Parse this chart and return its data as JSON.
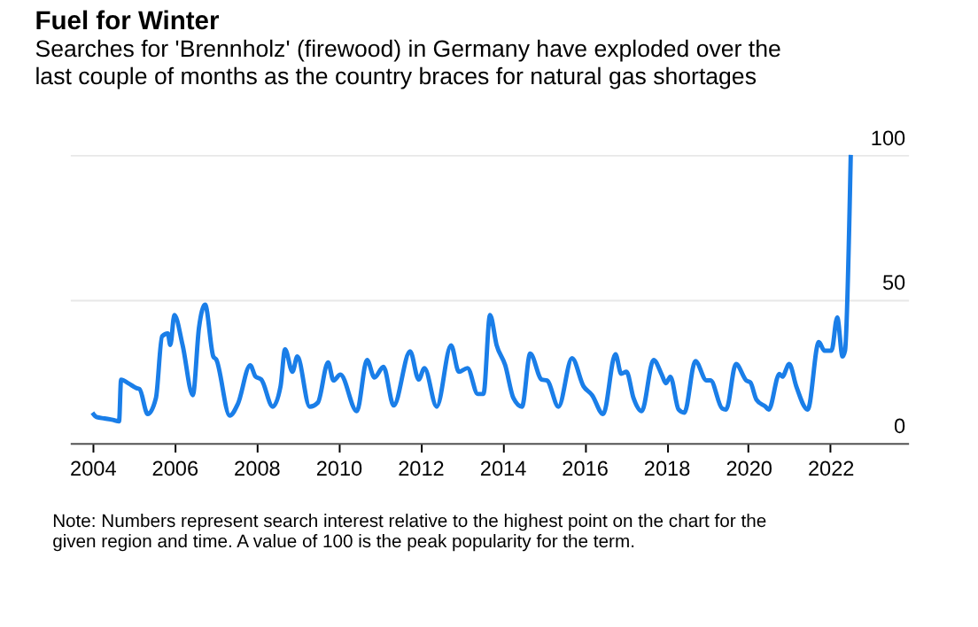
{
  "chart_data": {
    "type": "line",
    "title": "Fuel for Winter",
    "subtitle": "Searches for 'Brennholz' (firewood) in Germany have exploded over the last couple of months as the country braces for natural gas shortages",
    "annotations": [
      "Note: Numbers represent search interest relative to the highest point on the chart for the given region and time. A value of 100 is the peak popularity for the term."
    ],
    "series": [
      {
        "color": "#1a7ee8",
        "x": [
          2004.0,
          2004.1,
          2004.3,
          2004.5,
          2004.65,
          2004.7,
          2004.88,
          2005.08,
          2005.15,
          2005.35,
          2005.55,
          2005.7,
          2005.84,
          2005.9,
          2006.0,
          2006.2,
          2006.45,
          2006.6,
          2006.75,
          2006.95,
          2007.02,
          2007.35,
          2007.55,
          2007.85,
          2007.98,
          2008.12,
          2008.4,
          2008.59,
          2008.7,
          2008.88,
          2009.0,
          2009.3,
          2009.5,
          2009.75,
          2009.88,
          2010.05,
          2010.45,
          2010.7,
          2010.88,
          2011.1,
          2011.35,
          2011.75,
          2011.96,
          2012.1,
          2012.4,
          2012.75,
          2012.94,
          2013.15,
          2013.4,
          2013.54,
          2013.7,
          2013.86,
          2014.07,
          2014.27,
          2014.48,
          2014.68,
          2014.96,
          2015.09,
          2015.37,
          2015.7,
          2015.98,
          2016.19,
          2016.46,
          2016.76,
          2016.9,
          2017.03,
          2017.2,
          2017.4,
          2017.69,
          2017.89,
          2017.99,
          2018.1,
          2018.3,
          2018.44,
          2018.71,
          2018.98,
          2019.08,
          2019.36,
          2019.46,
          2019.7,
          2019.95,
          2020.05,
          2020.2,
          2020.42,
          2020.5,
          2020.76,
          2020.83,
          2021.0,
          2021.17,
          2021.45,
          2021.72,
          2021.86,
          2022.03,
          2022.17,
          2022.3,
          2022.36,
          2022.5
        ],
        "values": [
          10.5,
          9,
          8.5,
          8,
          7.5,
          22,
          20.7,
          19,
          18.7,
          10,
          15.6,
          37,
          38,
          34,
          44.4,
          34,
          16.6,
          40,
          48,
          30,
          29,
          9.5,
          13.6,
          27,
          23,
          22,
          12.6,
          19.7,
          32.5,
          24.7,
          30,
          12.6,
          14,
          28,
          21.7,
          23.7,
          11,
          28.8,
          22.7,
          26.4,
          13,
          31.8,
          22,
          26,
          12.6,
          33.9,
          24.7,
          26,
          17,
          17,
          44.4,
          34,
          27,
          15.6,
          12.6,
          31,
          22,
          21.7,
          12.6,
          29.4,
          19.7,
          16.6,
          10,
          30.8,
          24,
          24.7,
          15.6,
          11,
          28.8,
          23.7,
          20.7,
          23,
          11.6,
          10.5,
          28.4,
          21.7,
          21.7,
          12,
          11.6,
          27.4,
          21.7,
          21,
          15,
          12.6,
          11.6,
          24,
          23,
          27.4,
          19.7,
          11.6,
          35,
          32,
          32,
          43.6,
          30,
          32,
          100
        ]
      }
    ],
    "xlim": [
      2003.45,
      2023.9
    ],
    "xticks": [
      2004,
      2006,
      2008,
      2010,
      2012,
      2014,
      2016,
      2018,
      2020,
      2022
    ],
    "ylim": [
      0,
      100
    ],
    "yticks": [
      0,
      50,
      100
    ],
    "grid": "y",
    "line_style": "solid",
    "marker": "none"
  }
}
